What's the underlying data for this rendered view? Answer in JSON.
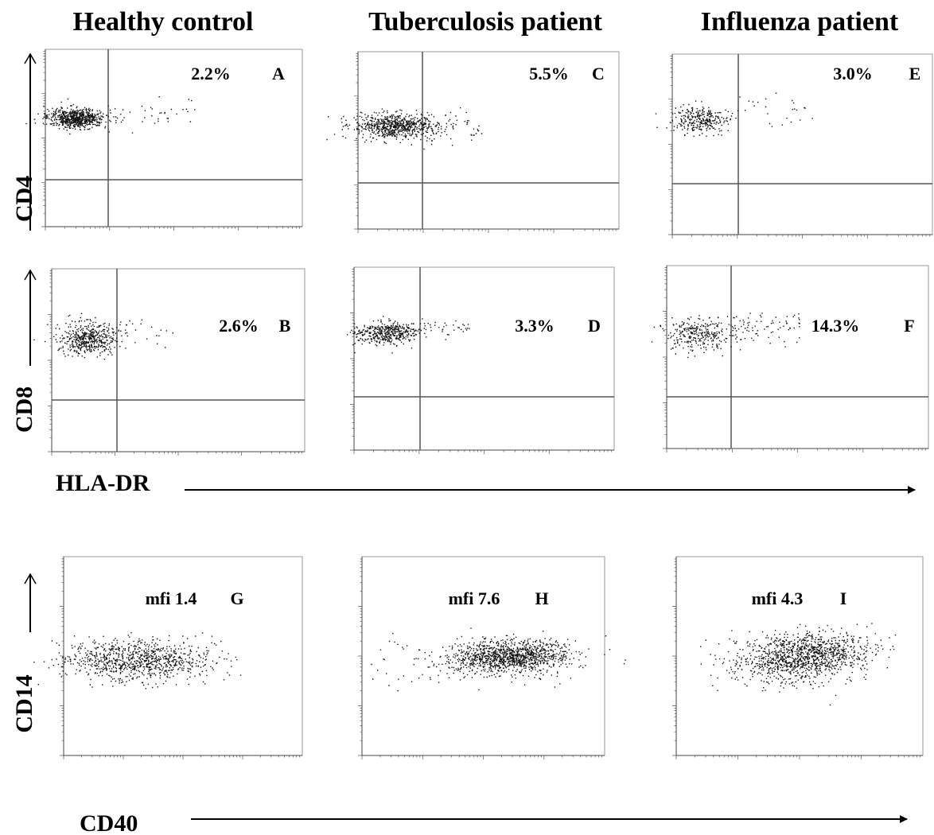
{
  "column_headers": [
    "Healthy control",
    "Tuberculosis patient",
    "Influenza patient"
  ],
  "axis_labels": {
    "cd4": "CD4",
    "cd8": "CD8",
    "hla_dr": "HLA-DR",
    "cd14": "CD14",
    "cd40": "CD40"
  },
  "panels": [
    {
      "stat": "2.2%",
      "letter": "A"
    },
    {
      "stat": "2.6%",
      "letter": "B"
    },
    {
      "stat": "5.5%",
      "letter": "C"
    },
    {
      "stat": "3.3%",
      "letter": "D"
    },
    {
      "stat": "3.0%",
      "letter": "E"
    },
    {
      "stat": "14.3%",
      "letter": "F"
    },
    {
      "stat": "mfi 1.4",
      "letter": "G"
    },
    {
      "stat": "mfi 7.6",
      "letter": "H"
    },
    {
      "stat": "mfi 4.3",
      "letter": "I"
    }
  ]
}
